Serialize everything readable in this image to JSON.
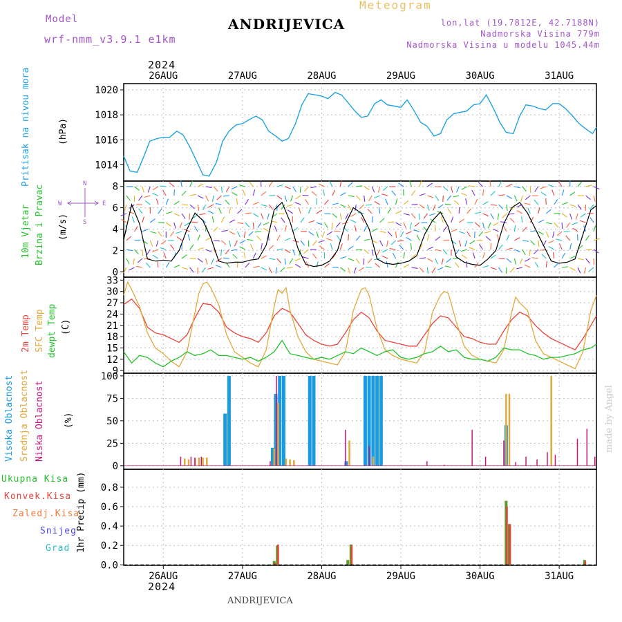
{
  "header": {
    "model_label": "Model",
    "model_name": "wrf-nmm_v3.9.1 e1km",
    "station": "ANDRIJEVICA",
    "chart_kind": "Meteogram",
    "lonlat": "lon,lat (19.7812E, 42.7188N)",
    "elevation": "Nadmorska Visina 779m",
    "model_elevation": "Nadmorska Visina u modelu 1045.44m",
    "year_top": "2024",
    "year_bottom": "2024",
    "footer_station": "ANDRIJEVICA",
    "watermark": "made by Angel"
  },
  "labels": {
    "pressure": "Pritisak na nivou mora",
    "pressure_unit": "(hPa)",
    "wind1": "10m Vjetar",
    "wind2": "Brzina i Pravac",
    "wind_unit": "(m/s)",
    "compass_w": "W",
    "compass_e": "E",
    "compass_n": "N",
    "compass_s": "S",
    "temp1": "2m Temp",
    "temp2": "SFC Temp",
    "temp3": "dewpt Temp",
    "temp_unit": "(C)",
    "cloud1": "Visoka Oblacnost",
    "cloud2": "Srednja Oblacnost",
    "cloud3": "Niska Oblacnost",
    "cloud_unit": "(%)",
    "precip1": "Ukupna Kisa",
    "precip2": "Konvek.Kisa",
    "precip3": "Zaledj.Kisa",
    "precip4": "Snijeg",
    "precip5": "Grad",
    "precip_axis": "1hr Precip (mm)"
  },
  "colors": {
    "pressure": "#1fa3e0",
    "temp2m": "#e8423a",
    "sfc": "#e3a83a",
    "dew": "#22c32a",
    "wind_speed": "#000000",
    "high_cloud": "#1a9be0",
    "mid_cloud": "#e3a83a",
    "low_cloud": "#c8157a",
    "total_precip": "#5a9a28",
    "conv_precip": "#e8423a",
    "freezing": "#f07a3a",
    "snow": "#4a4ae0",
    "hail": "#28c0c0",
    "model_color": "#a155c9",
    "title_meteogram": "#e8c060"
  },
  "chart_data": [
    {
      "type": "line",
      "name": "pressure",
      "ylabel": "(hPa)",
      "ylim": [
        1012.7,
        1020.5
      ],
      "yticks": [
        1014,
        1016,
        1018,
        1020
      ],
      "x_day_ticks": [
        "26AUG",
        "27AUG",
        "28AUG",
        "29AUG",
        "30AUG",
        "31AUG"
      ],
      "xlim_days": [
        25.5,
        31.47
      ],
      "x_days": [
        25.5,
        25.58,
        25.67,
        25.75,
        25.83,
        25.92,
        26.0,
        26.08,
        26.17,
        26.25,
        26.33,
        26.42,
        26.5,
        26.58,
        26.67,
        26.75,
        26.83,
        26.92,
        27.0,
        27.08,
        27.17,
        27.25,
        27.33,
        27.42,
        27.5,
        27.58,
        27.67,
        27.75,
        27.83,
        27.92,
        28.0,
        28.08,
        28.17,
        28.25,
        28.33,
        28.42,
        28.5,
        28.58,
        28.67,
        28.75,
        28.83,
        28.92,
        29.0,
        29.08,
        29.17,
        29.25,
        29.33,
        29.42,
        29.5,
        29.58,
        29.67,
        29.75,
        29.83,
        29.92,
        30.0,
        30.08,
        30.17,
        30.25,
        30.33,
        30.42,
        30.5,
        30.58,
        30.67,
        30.75,
        30.83,
        30.92,
        31.0,
        31.08,
        31.17,
        31.25,
        31.33,
        31.42,
        31.47
      ],
      "values": [
        1014.7,
        1013.5,
        1013.4,
        1014.6,
        1015.9,
        1016.1,
        1016.2,
        1016.2,
        1016.7,
        1016.4,
        1015.5,
        1014.3,
        1013.2,
        1013.1,
        1014.2,
        1015.9,
        1016.7,
        1017.2,
        1017.3,
        1017.6,
        1017.9,
        1017.6,
        1016.7,
        1016.3,
        1015.9,
        1016.1,
        1017.3,
        1018.8,
        1019.7,
        1019.6,
        1019.5,
        1019.3,
        1019.8,
        1019.6,
        1019.0,
        1018.3,
        1017.8,
        1017.9,
        1018.9,
        1019.2,
        1018.8,
        1018.7,
        1018.6,
        1019.2,
        1018.3,
        1017.4,
        1017.1,
        1016.3,
        1016.5,
        1017.6,
        1018.1,
        1018.2,
        1018.3,
        1018.8,
        1018.9,
        1019.6,
        1018.5,
        1017.4,
        1016.6,
        1016.5,
        1017.9,
        1018.8,
        1018.7,
        1018.5,
        1018.4,
        1018.9,
        1018.9,
        1018.5,
        1017.9,
        1017.3,
        1016.9,
        1016.5,
        1017.0
      ]
    },
    {
      "type": "line",
      "name": "wind",
      "ylabel": "(m/s)",
      "ylim": [
        -0.5,
        8.5
      ],
      "yticks": [
        0,
        2,
        4,
        6,
        8
      ],
      "x_days": [
        25.5,
        25.6,
        25.7,
        25.8,
        25.9,
        26.0,
        26.1,
        26.2,
        26.3,
        26.4,
        26.5,
        26.6,
        26.7,
        26.8,
        26.9,
        27.0,
        27.1,
        27.2,
        27.3,
        27.4,
        27.5,
        27.6,
        27.7,
        27.8,
        27.9,
        28.0,
        28.1,
        28.2,
        28.3,
        28.4,
        28.5,
        28.6,
        28.7,
        28.8,
        28.9,
        29.0,
        29.1,
        29.2,
        29.3,
        29.4,
        29.5,
        29.6,
        29.7,
        29.8,
        29.9,
        30.0,
        30.1,
        30.2,
        30.3,
        30.4,
        30.5,
        30.6,
        30.7,
        30.8,
        30.9,
        31.0,
        31.1,
        31.2,
        31.3,
        31.4,
        31.47
      ],
      "values": [
        3.0,
        6.3,
        4.5,
        1.2,
        1.0,
        1.1,
        1.0,
        2.0,
        4.0,
        5.5,
        4.8,
        3.2,
        1.0,
        0.8,
        0.9,
        0.9,
        1.1,
        1.2,
        2.5,
        5.8,
        6.5,
        4.7,
        2.2,
        0.7,
        0.5,
        0.6,
        1.0,
        2.0,
        4.5,
        6.0,
        5.5,
        4.0,
        1.2,
        0.8,
        0.7,
        0.8,
        1.0,
        1.5,
        3.5,
        4.8,
        5.6,
        4.2,
        1.4,
        0.9,
        0.7,
        0.6,
        1.2,
        2.0,
        4.5,
        6.0,
        6.5,
        5.5,
        4.0,
        2.5,
        1.0,
        0.8,
        0.9,
        1.2,
        3.5,
        5.8,
        6.2
      ]
    },
    {
      "type": "line",
      "name": "temperature",
      "ylabel": "(C)",
      "ylim": [
        8.3,
        33.8
      ],
      "yticks": [
        9,
        12,
        15,
        18,
        21,
        24,
        27,
        30,
        33
      ],
      "series": [
        {
          "name": "2m Temp",
          "x_days": [
            25.5,
            25.6,
            25.7,
            25.8,
            25.9,
            26.0,
            26.1,
            26.2,
            26.3,
            26.4,
            26.5,
            26.6,
            26.7,
            26.8,
            26.9,
            27.0,
            27.1,
            27.2,
            27.3,
            27.4,
            27.5,
            27.6,
            27.7,
            27.8,
            27.9,
            28.0,
            28.1,
            28.2,
            28.3,
            28.4,
            28.5,
            28.6,
            28.7,
            28.8,
            28.9,
            29.0,
            29.1,
            29.2,
            29.3,
            29.4,
            29.5,
            29.6,
            29.7,
            29.8,
            29.9,
            30.0,
            30.1,
            30.2,
            30.3,
            30.4,
            30.5,
            30.6,
            30.7,
            30.8,
            30.9,
            31.0,
            31.1,
            31.2,
            31.3,
            31.4,
            31.47
          ],
          "values": [
            26.5,
            28.0,
            25.5,
            20.5,
            19.0,
            18.5,
            17.5,
            16.5,
            18.5,
            23.0,
            26.8,
            26.5,
            24.5,
            20.5,
            19.0,
            18.0,
            17.5,
            16.5,
            19.0,
            23.5,
            25.5,
            24.5,
            21.5,
            18.5,
            17.0,
            16.0,
            15.5,
            16.0,
            19.0,
            22.5,
            24.5,
            23.0,
            19.5,
            17.0,
            16.5,
            16.0,
            15.5,
            15.5,
            18.5,
            21.5,
            23.5,
            23.0,
            20.5,
            18.0,
            17.5,
            16.5,
            16.0,
            16.0,
            19.5,
            22.5,
            24.5,
            23.5,
            21.0,
            19.0,
            17.5,
            16.5,
            15.5,
            14.5,
            17.5,
            21.0,
            23.5
          ]
        },
        {
          "name": "SFC Temp",
          "x_days": [
            25.5,
            25.55,
            25.6,
            25.7,
            25.8,
            25.9,
            26.0,
            26.1,
            26.2,
            26.3,
            26.4,
            26.45,
            26.5,
            26.55,
            26.6,
            26.7,
            26.8,
            26.9,
            27.0,
            27.1,
            27.2,
            27.3,
            27.4,
            27.45,
            27.5,
            27.55,
            27.6,
            27.7,
            27.8,
            27.9,
            28.0,
            28.1,
            28.2,
            28.3,
            28.4,
            28.5,
            28.55,
            28.6,
            28.7,
            28.8,
            28.9,
            29.0,
            29.1,
            29.2,
            29.3,
            29.4,
            29.5,
            29.55,
            29.6,
            29.7,
            29.8,
            29.9,
            30.0,
            30.1,
            30.2,
            30.3,
            30.4,
            30.45,
            30.5,
            30.6,
            30.7,
            30.8,
            30.9,
            31.0,
            31.1,
            31.2,
            31.3,
            31.4,
            31.47
          ],
          "values": [
            29.0,
            32.5,
            30.5,
            26.0,
            19.0,
            15.0,
            13.5,
            11.5,
            10.0,
            14.0,
            24.5,
            29.5,
            32.0,
            32.5,
            31.0,
            26.5,
            18.5,
            14.0,
            12.5,
            11.0,
            10.0,
            14.5,
            26.0,
            30.5,
            29.5,
            31.0,
            25.0,
            18.0,
            14.0,
            12.0,
            11.5,
            11.0,
            10.5,
            14.0,
            25.0,
            30.5,
            31.0,
            29.0,
            20.0,
            14.5,
            13.0,
            12.0,
            11.5,
            11.0,
            14.0,
            24.5,
            29.0,
            30.0,
            29.5,
            22.0,
            15.5,
            13.0,
            12.0,
            11.5,
            11.0,
            14.5,
            24.5,
            28.5,
            27.0,
            25.0,
            17.0,
            13.5,
            12.5,
            11.5,
            10.5,
            9.5,
            14.0,
            25.0,
            29.0
          ]
        },
        {
          "name": "dewpt Temp",
          "x_days": [
            25.5,
            25.6,
            25.7,
            25.8,
            25.9,
            26.0,
            26.1,
            26.2,
            26.3,
            26.4,
            26.5,
            26.6,
            26.7,
            26.8,
            26.9,
            27.0,
            27.1,
            27.2,
            27.3,
            27.4,
            27.5,
            27.6,
            27.7,
            27.8,
            27.9,
            28.0,
            28.1,
            28.2,
            28.3,
            28.4,
            28.5,
            28.6,
            28.7,
            28.8,
            28.9,
            29.0,
            29.1,
            29.2,
            29.3,
            29.4,
            29.5,
            29.6,
            29.7,
            29.8,
            29.9,
            30.0,
            30.1,
            30.2,
            30.3,
            30.4,
            30.5,
            30.6,
            30.7,
            30.8,
            30.9,
            31.0,
            31.1,
            31.2,
            31.3,
            31.4,
            31.47
          ],
          "values": [
            14.0,
            11.0,
            13.0,
            12.5,
            11.0,
            10.0,
            11.5,
            12.5,
            14.0,
            13.0,
            13.5,
            14.5,
            13.0,
            13.0,
            12.5,
            12.0,
            12.5,
            11.5,
            12.5,
            14.0,
            17.0,
            13.5,
            13.0,
            12.5,
            12.0,
            12.5,
            12.0,
            13.0,
            14.0,
            13.5,
            15.0,
            14.0,
            13.0,
            14.0,
            14.5,
            12.5,
            12.0,
            12.5,
            13.5,
            14.0,
            15.5,
            14.0,
            14.5,
            12.5,
            12.0,
            12.0,
            11.5,
            12.5,
            15.0,
            14.5,
            14.5,
            13.5,
            13.0,
            12.0,
            12.5,
            12.5,
            13.0,
            13.5,
            14.5,
            15.0,
            16.0
          ]
        }
      ]
    },
    {
      "type": "bar",
      "name": "cloud cover",
      "ylabel": "(%)",
      "ylim": [
        -4,
        103
      ],
      "yticks": [
        0,
        25,
        50,
        75,
        100
      ],
      "series": [
        {
          "name": "Visoka Oblacnost",
          "bars": [
            [
              26.78,
              58
            ],
            [
              26.83,
              100
            ],
            [
              27.38,
              20
            ],
            [
              27.42,
              80
            ],
            [
              27.47,
              100
            ],
            [
              27.52,
              100
            ],
            [
              27.85,
              100
            ],
            [
              27.9,
              100
            ],
            [
              28.31,
              5
            ],
            [
              28.55,
              100
            ],
            [
              28.6,
              100
            ],
            [
              28.65,
              100
            ],
            [
              28.7,
              100
            ],
            [
              28.75,
              100
            ],
            [
              30.33,
              45
            ]
          ]
        },
        {
          "name": "Srednja Oblacnost",
          "bars": [
            [
              26.27,
              8
            ],
            [
              26.32,
              7
            ],
            [
              26.4,
              8
            ],
            [
              26.45,
              9
            ],
            [
              26.5,
              9
            ],
            [
              26.55,
              9
            ],
            [
              27.4,
              19
            ],
            [
              27.45,
              70
            ],
            [
              27.55,
              8
            ],
            [
              27.6,
              7
            ],
            [
              27.65,
              6
            ],
            [
              28.35,
              28
            ],
            [
              28.65,
              10
            ],
            [
              30.33,
              80
            ],
            [
              30.37,
              80
            ],
            [
              30.9,
              100
            ]
          ]
        },
        {
          "name": "Niska Oblacnost",
          "bars": [
            [
              26.22,
              10
            ],
            [
              26.35,
              10
            ],
            [
              26.4,
              9
            ],
            [
              26.48,
              10
            ],
            [
              27.35,
              5
            ],
            [
              27.43,
              100
            ],
            [
              28.3,
              40
            ],
            [
              28.6,
              22
            ],
            [
              29.33,
              5
            ],
            [
              29.55,
              1
            ],
            [
              29.9,
              40
            ],
            [
              30.07,
              10
            ],
            [
              30.3,
              28
            ],
            [
              30.45,
              4
            ],
            [
              30.58,
              10
            ],
            [
              30.72,
              7
            ],
            [
              30.85,
              15
            ],
            [
              30.95,
              12
            ],
            [
              31.23,
              30
            ],
            [
              31.35,
              41
            ],
            [
              31.45,
              10
            ]
          ]
        }
      ]
    },
    {
      "type": "bar",
      "name": "precipitation",
      "ylabel": "1hr Precip (mm)",
      "ylim": [
        -0.005,
        0.985
      ],
      "yticks": [
        0.0,
        0.2,
        0.4,
        0.6,
        0.8
      ],
      "series": [
        {
          "name": "Ukupna Kisa",
          "bars": [
            [
              27.4,
              0.04
            ],
            [
              27.44,
              0.2
            ],
            [
              28.33,
              0.05
            ],
            [
              28.37,
              0.21
            ],
            [
              30.33,
              0.66
            ],
            [
              30.37,
              0.42
            ],
            [
              31.32,
              0.05
            ]
          ]
        },
        {
          "name": "Konvek.Kisa",
          "bars": [
            [
              27.41,
              0.02
            ],
            [
              27.45,
              0.21
            ],
            [
              28.38,
              0.2
            ],
            [
              30.34,
              0.6
            ],
            [
              30.38,
              0.42
            ],
            [
              31.33,
              0.04
            ]
          ]
        },
        {
          "name": "Zaledj.Kisa",
          "bars": []
        },
        {
          "name": "Snijeg",
          "bars": []
        },
        {
          "name": "Grad",
          "bars": []
        }
      ]
    }
  ]
}
